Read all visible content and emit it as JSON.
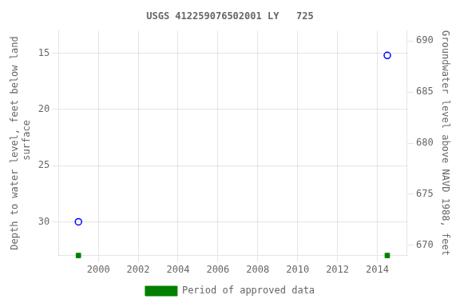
{
  "chart_data": {
    "type": "scatter",
    "title": "USGS 412259076502001 LY   725",
    "x": [
      1999.0,
      2014.5
    ],
    "series": [
      {
        "color": "blue",
        "marker": "circle_open",
        "values": [
          30.0,
          15.2
        ]
      },
      {
        "name": "Period of approved data",
        "color": "#008000",
        "marker": "square",
        "values": [
          33.0,
          33.0
        ]
      }
    ],
    "xlim": [
      1998.0,
      2015.5
    ],
    "xticks": [
      2000,
      2002,
      2004,
      2006,
      2008,
      2010,
      2012,
      2014
    ],
    "ylim": [
      33.0,
      13.0
    ],
    "yticks": [
      15,
      20,
      25,
      30
    ],
    "y2lim": [
      669.0,
      691.0
    ],
    "y2ticks": [
      670,
      675,
      680,
      685,
      690
    ],
    "ylabel": "Depth to water level, feet below land\n surface",
    "y2label": "Groundwater level above NAVD 1988, feet",
    "grid": true,
    "legend": "bottom"
  }
}
